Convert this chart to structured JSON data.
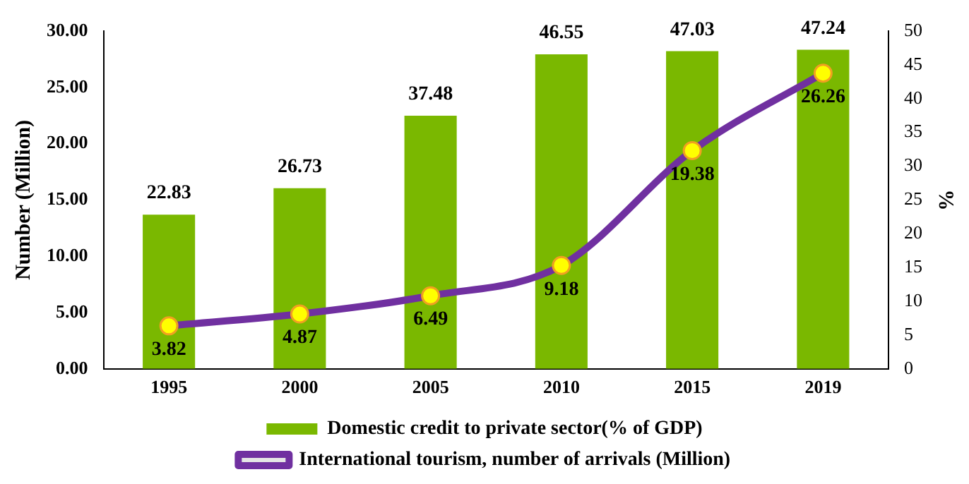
{
  "chart_data": {
    "type": "bar",
    "categories": [
      "1995",
      "2000",
      "2005",
      "2010",
      "2015",
      "2019"
    ],
    "ylabel": "Number (Million)",
    "y2label": "%",
    "series": [
      {
        "name": "Domestic credit to private sector(% of GDP)",
        "axis": "y2",
        "color": "#7ab800",
        "values": [
          22.83,
          26.73,
          37.48,
          46.55,
          47.03,
          47.24
        ]
      },
      {
        "name": "International tourism, number of arrivals (Million)",
        "type": "line",
        "axis": "y",
        "color": "#7030a0",
        "values": [
          3.82,
          4.87,
          6.49,
          9.18,
          19.38,
          26.26
        ]
      }
    ],
    "ylim": [
      0,
      30
    ],
    "yticks": [
      {
        "value": 0,
        "label": "0.00"
      },
      {
        "value": 5,
        "label": "5.00"
      },
      {
        "value": 10,
        "label": "10.00"
      },
      {
        "value": 15,
        "label": "15.00"
      },
      {
        "value": 20,
        "label": "20.00"
      },
      {
        "value": 25,
        "label": "25.00"
      },
      {
        "value": 30,
        "label": "30.00"
      }
    ],
    "y2lim": [
      0,
      50
    ],
    "y2ticks": [
      0,
      5,
      10,
      15,
      20,
      25,
      30,
      35,
      40,
      45,
      50
    ],
    "data_labels": true,
    "legend": "bottom",
    "grid": false,
    "marker": "circle",
    "line_style": "solid"
  }
}
